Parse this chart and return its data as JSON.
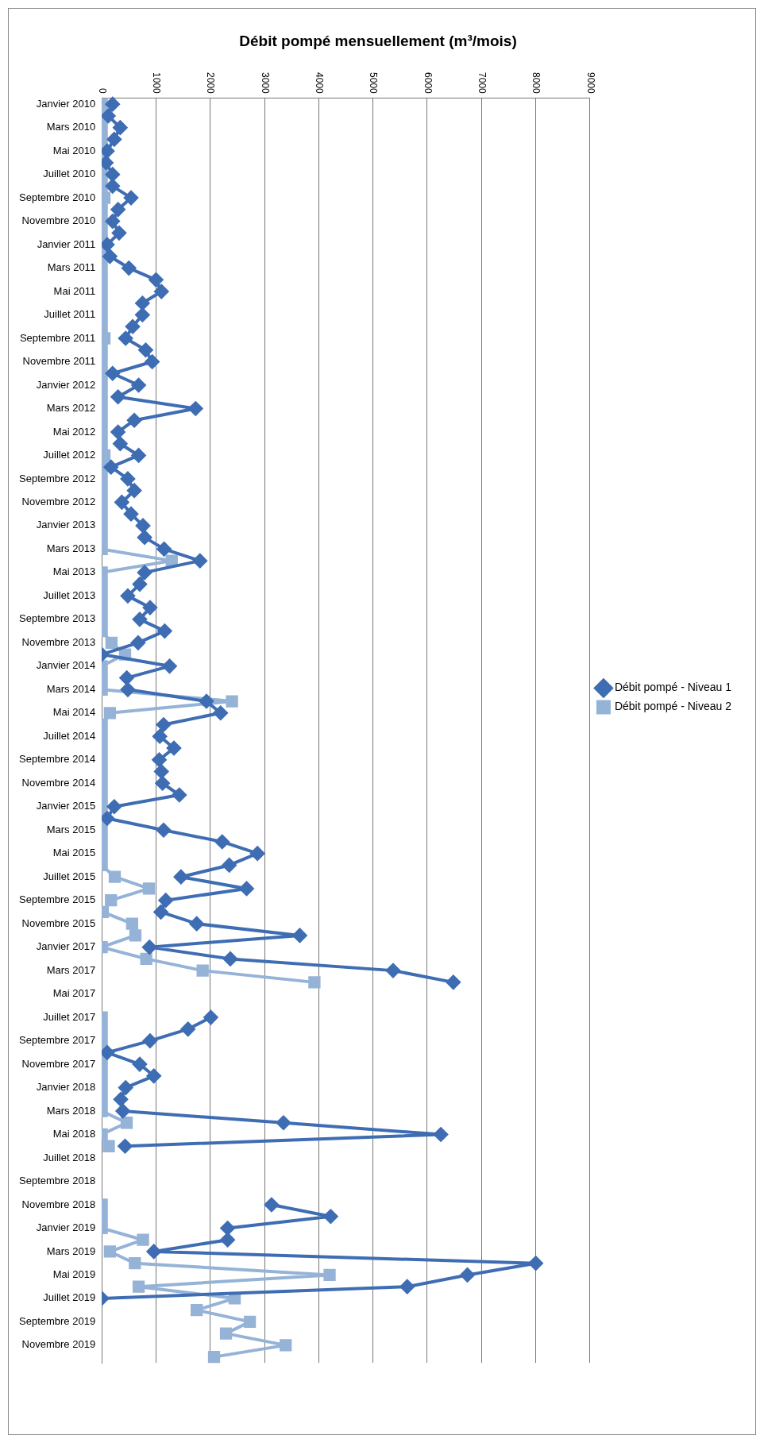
{
  "chart_data": {
    "type": "line",
    "title": "Débit pompé mensuellement (m³/mois)",
    "categories": [
      "Janvier 2010",
      null,
      "Mars 2010",
      null,
      "Mai 2010",
      null,
      "Juillet 2010",
      null,
      "Septembre 2010",
      null,
      "Novembre 2010",
      null,
      "Janvier 2011",
      null,
      "Mars 2011",
      null,
      "Mai 2011",
      null,
      "Juillet 2011",
      null,
      "Septembre 2011",
      null,
      "Novembre 2011",
      null,
      "Janvier 2012",
      null,
      "Mars 2012",
      null,
      "Mai 2012",
      null,
      "Juillet 2012",
      null,
      "Septembre 2012",
      null,
      "Novembre 2012",
      null,
      "Janvier 2013",
      null,
      "Mars 2013",
      null,
      "Mai 2013",
      null,
      "Juillet 2013",
      null,
      "Septembre 2013",
      null,
      "Novembre 2013",
      null,
      "Janvier 2014",
      null,
      "Mars 2014",
      null,
      "Mai 2014",
      null,
      "Juillet 2014",
      null,
      "Septembre 2014",
      null,
      "Novembre 2014",
      null,
      "Janvier 2015",
      null,
      "Mars 2015",
      null,
      "Mai 2015",
      null,
      "Juillet 2015",
      null,
      "Septembre 2015",
      null,
      "Novembre 2015",
      null,
      "Janvier 2017",
      null,
      "Mars 2017",
      null,
      "Mai 2017",
      null,
      "Juillet 2017",
      null,
      "Septembre 2017",
      null,
      "Novembre 2017",
      null,
      "Janvier 2018",
      null,
      "Mars 2018",
      null,
      "Mai 2018",
      null,
      "Juillet 2018",
      null,
      "Septembre 2018",
      null,
      "Novembre 2018",
      null,
      "Janvier 2019",
      null,
      "Mars 2019",
      null,
      "Mai 2019",
      null,
      "Juillet 2019",
      null,
      "Septembre 2019",
      null,
      "Novembre 2019",
      null
    ],
    "orientation": "horizontal",
    "series": [
      {
        "name": "Débit pompé - Niveau 1",
        "color": "#3e6db3",
        "marker": "diamond",
        "values": [
          200,
          120,
          340,
          230,
          100,
          80,
          200,
          200,
          540,
          300,
          200,
          320,
          100,
          150,
          500,
          1000,
          1100,
          750,
          750,
          570,
          440,
          810,
          930,
          200,
          680,
          300,
          1730,
          600,
          300,
          340,
          680,
          170,
          480,
          600,
          370,
          540,
          760,
          790,
          1150,
          1810,
          790,
          700,
          480,
          890,
          700,
          1160,
          670,
          0,
          1250,
          460,
          480,
          1930,
          2190,
          1140,
          1070,
          1330,
          1060,
          1100,
          1120,
          1430,
          230,
          100,
          1140,
          2220,
          2870,
          2350,
          1460,
          2670,
          1180,
          1090,
          1750,
          3650,
          880,
          2370,
          5370,
          6480,
          null,
          null,
          2010,
          1590,
          890,
          100,
          700,
          960,
          440,
          350,
          390,
          3350,
          6250,
          430,
          null,
          null,
          null,
          null,
          3130,
          4220,
          2320,
          2320,
          960,
          8000,
          6740,
          5630,
          0,
          null,
          null,
          null,
          null,
          null
        ]
      },
      {
        "name": "Débit pompé - Niveau 2",
        "color": "#95b3d7",
        "marker": "square",
        "values": [
          0,
          0,
          0,
          0,
          0,
          0,
          0,
          0,
          50,
          0,
          0,
          0,
          0,
          0,
          0,
          0,
          0,
          0,
          0,
          0,
          50,
          0,
          0,
          0,
          0,
          0,
          0,
          0,
          0,
          0,
          50,
          0,
          0,
          0,
          0,
          0,
          0,
          0,
          0,
          1290,
          0,
          0,
          0,
          0,
          0,
          0,
          180,
          430,
          0,
          0,
          0,
          2400,
          150,
          0,
          0,
          0,
          0,
          0,
          0,
          0,
          0,
          0,
          0,
          0,
          0,
          0,
          240,
          870,
          170,
          20,
          560,
          620,
          0,
          820,
          1860,
          3920,
          null,
          null,
          0,
          0,
          0,
          0,
          0,
          0,
          0,
          0,
          0,
          460,
          0,
          130,
          null,
          null,
          null,
          null,
          0,
          0,
          0,
          760,
          150,
          610,
          4200,
          680,
          2450,
          1750,
          2730,
          2290,
          3390,
          2070
        ]
      }
    ],
    "xlim": [
      0,
      9000
    ],
    "xticks": [
      0,
      1000,
      2000,
      3000,
      4000,
      5000,
      6000,
      7000,
      8000,
      9000
    ],
    "grid": "x",
    "legend": "right",
    "line_style": "solid"
  }
}
